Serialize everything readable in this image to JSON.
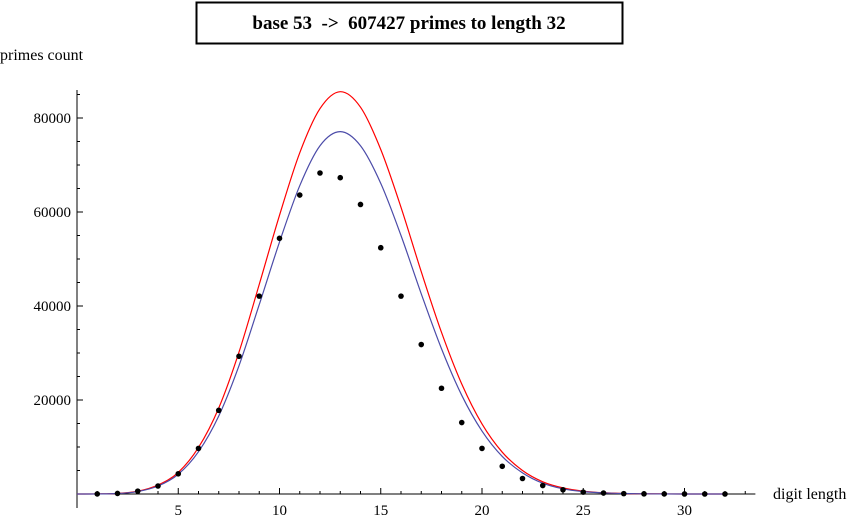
{
  "chart_data": {
    "type": "scatter",
    "title": "base 53  ->  607427 primes to length 32",
    "xlabel": "digit length",
    "ylabel": "primes count",
    "xlim": [
      -0.5,
      33.5
    ],
    "ylim": [
      0,
      88000
    ],
    "x_ticks": [
      5,
      10,
      15,
      20,
      25,
      30
    ],
    "y_ticks": [
      20000,
      40000,
      60000,
      80000
    ],
    "grid": false,
    "legend": "none",
    "colors": {
      "points": "#000000",
      "upper_curve": "#ff0000",
      "lower_curve": "#4b4ba8",
      "axis": "#000000"
    },
    "series": [
      {
        "kind": "points",
        "x": [
          1,
          2,
          3,
          4,
          5,
          6,
          7,
          8,
          9,
          10,
          11,
          12,
          13,
          14,
          15,
          16,
          17,
          18,
          19,
          20,
          21,
          22,
          23,
          24,
          25,
          26,
          27,
          28,
          29,
          30,
          31,
          32
        ],
        "values": [
          16,
          120,
          610,
          1700,
          4300,
          9700,
          17800,
          29300,
          42100,
          54400,
          63600,
          68300,
          67300,
          61600,
          52400,
          42100,
          31800,
          22500,
          15200,
          9700,
          5900,
          3300,
          1800,
          900,
          400,
          200,
          80,
          30,
          10,
          5,
          2,
          1
        ]
      },
      {
        "kind": "curve",
        "x": [
          0,
          1,
          2,
          3,
          4,
          5,
          6,
          7,
          8,
          9,
          10,
          11,
          12,
          13,
          14,
          15,
          16,
          17,
          18,
          19,
          20,
          21,
          22,
          23,
          24,
          25,
          26,
          27,
          28,
          29,
          30,
          31,
          32
        ],
        "values": [
          0,
          10,
          110,
          580,
          1900,
          4600,
          9900,
          18300,
          30200,
          44600,
          59300,
          72600,
          82000,
          85600,
          82300,
          73300,
          61000,
          47300,
          34400,
          23400,
          14900,
          8900,
          5000,
          2600,
          1300,
          600,
          260,
          110,
          40,
          15,
          5,
          2,
          1
        ]
      },
      {
        "kind": "curve",
        "x": [
          0,
          1,
          2,
          3,
          4,
          5,
          6,
          7,
          8,
          9,
          10,
          11,
          12,
          13,
          14,
          15,
          16,
          17,
          18,
          19,
          20,
          21,
          22,
          23,
          24,
          25,
          26,
          27,
          28,
          29,
          30,
          31,
          32
        ],
        "values": [
          0,
          10,
          100,
          520,
          1700,
          4200,
          9000,
          16600,
          27300,
          40300,
          53600,
          65600,
          74100,
          77100,
          74100,
          66100,
          55000,
          42600,
          30900,
          21000,
          13400,
          8000,
          4500,
          2300,
          1100,
          500,
          230,
          100,
          40,
          15,
          5,
          2,
          1
        ]
      }
    ]
  }
}
